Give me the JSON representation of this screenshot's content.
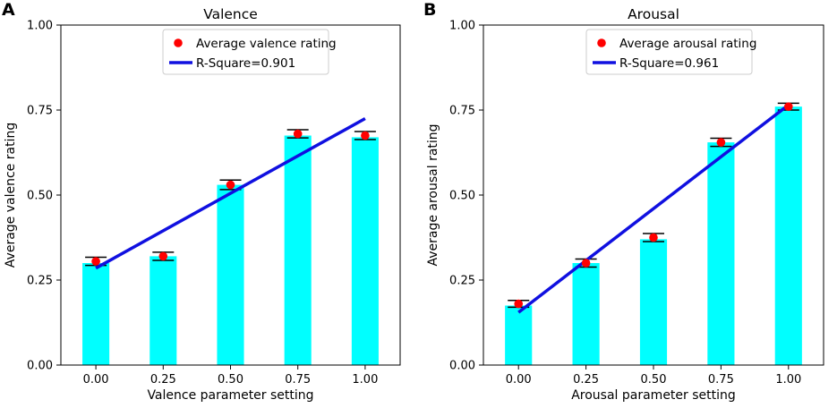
{
  "figure_labels": [
    "A",
    "B"
  ],
  "chart_data": [
    {
      "type": "bar",
      "title": "Valence",
      "xlabel": "Valence parameter setting",
      "ylabel": "Average valence rating",
      "categories": [
        "0.00",
        "0.25",
        "0.50",
        "0.75",
        "1.00"
      ],
      "x": [
        0.0,
        0.25,
        0.5,
        0.75,
        1.0
      ],
      "values": [
        0.3,
        0.32,
        0.53,
        0.675,
        0.67
      ],
      "means": [
        0.305,
        0.32,
        0.53,
        0.68,
        0.675
      ],
      "errors": [
        0.012,
        0.012,
        0.014,
        0.012,
        0.012
      ],
      "fit_line": {
        "x": [
          0.0,
          1.0
        ],
        "y": [
          0.285,
          0.725
        ]
      },
      "xlim": [
        -0.13,
        1.13
      ],
      "ylim": [
        0,
        1.0
      ],
      "yticks": [
        0.0,
        0.25,
        0.5,
        0.75,
        1.0
      ],
      "ytick_labels": [
        "0.00",
        "0.25",
        "0.50",
        "0.75",
        "1.00"
      ],
      "legend": {
        "points_label": "Average valence rating",
        "line_label": "R-Square=0.901",
        "placement": "top-right"
      },
      "colors": {
        "bar": "#00ffff",
        "points": "#ff0000",
        "line": "#1010e0",
        "error": "#000000"
      }
    },
    {
      "type": "bar",
      "title": "Arousal",
      "xlabel": "Arousal parameter setting",
      "ylabel": "Average arousal rating",
      "categories": [
        "0.00",
        "0.25",
        "0.50",
        "0.75",
        "1.00"
      ],
      "x": [
        0.0,
        0.25,
        0.5,
        0.75,
        1.0
      ],
      "values": [
        0.175,
        0.3,
        0.37,
        0.655,
        0.76
      ],
      "means": [
        0.18,
        0.3,
        0.375,
        0.655,
        0.76
      ],
      "errors": [
        0.01,
        0.012,
        0.012,
        0.012,
        0.01
      ],
      "fit_line": {
        "x": [
          0.0,
          1.0
        ],
        "y": [
          0.155,
          0.765
        ]
      },
      "xlim": [
        -0.13,
        1.13
      ],
      "ylim": [
        0,
        1.0
      ],
      "yticks": [
        0.0,
        0.25,
        0.5,
        0.75,
        1.0
      ],
      "ytick_labels": [
        "0.00",
        "0.25",
        "0.50",
        "0.75",
        "1.00"
      ],
      "legend": {
        "points_label": "Average arousal rating",
        "line_label": "R-Square=0.961",
        "placement": "top-right"
      },
      "colors": {
        "bar": "#00ffff",
        "points": "#ff0000",
        "line": "#1010e0",
        "error": "#000000"
      }
    }
  ]
}
